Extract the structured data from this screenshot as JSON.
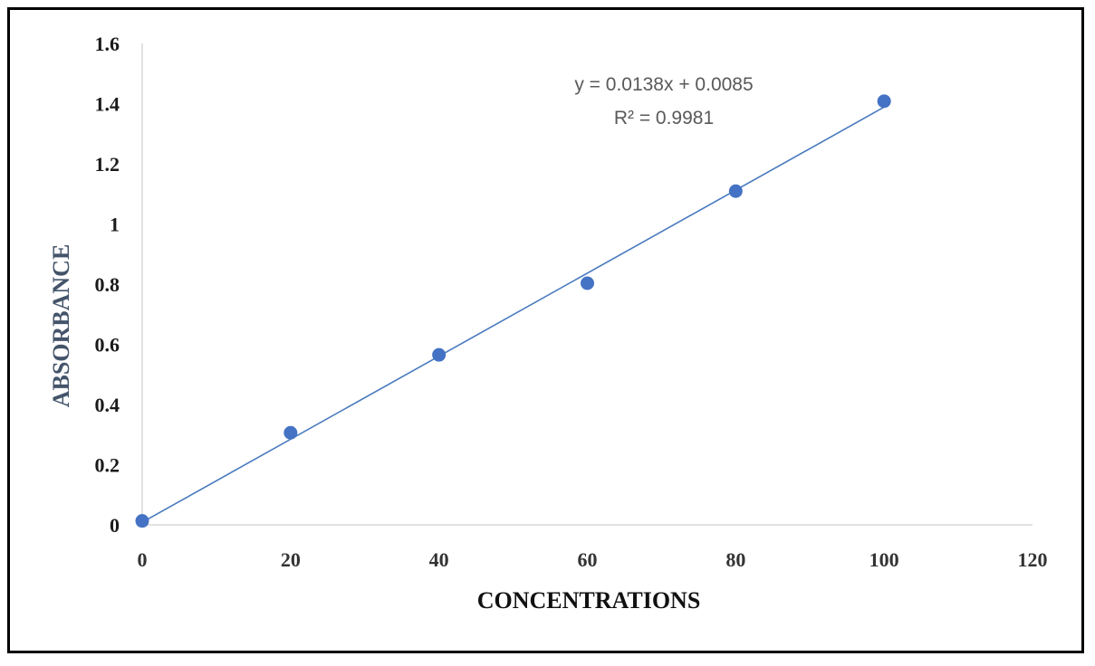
{
  "chart_data": {
    "type": "scatter",
    "xlabel": "CONCENTRATIONS",
    "ylabel": "ABSORBANCE",
    "xlim": [
      0,
      120
    ],
    "ylim": [
      0,
      1.6
    ],
    "x_ticks": [
      "0",
      "20",
      "40",
      "60",
      "80",
      "100",
      "120"
    ],
    "y_ticks": [
      "0",
      "0.2",
      "0.4",
      "0.6",
      "0.8",
      "1",
      "1.2",
      "1.4",
      "1.6"
    ],
    "grid": false,
    "legend": "none",
    "series": [
      {
        "x": [
          0,
          20,
          40,
          60,
          80,
          100
        ],
        "y": [
          0.013,
          0.306,
          0.565,
          0.803,
          1.109,
          1.408
        ],
        "color": "#4472c4"
      }
    ],
    "trendline": {
      "type": "linear",
      "slope": 0.0138,
      "intercept": 0.0085,
      "color": "#4a7bbf",
      "equation": "y = 0.0138x + 0.0085",
      "r_squared": "R² = 0.9981"
    },
    "colors": {
      "axis_line": "#d9d9d9",
      "ylabel": "#44546a"
    }
  }
}
